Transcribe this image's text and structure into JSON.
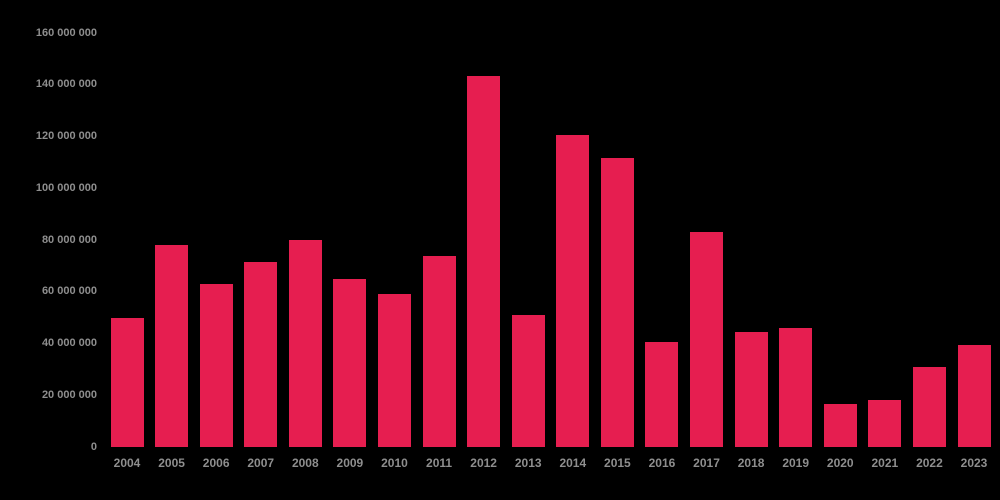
{
  "page": {
    "background_color": "#000000"
  },
  "chart_data": {
    "type": "bar",
    "title": "",
    "categories": [
      "2004",
      "2005",
      "2006",
      "2007",
      "2008",
      "2009",
      "2010",
      "2011",
      "2012",
      "2013",
      "2014",
      "2015",
      "2016",
      "2017",
      "2018",
      "2019",
      "2020",
      "2021",
      "2022",
      "2023"
    ],
    "values": [
      50000000,
      78000000,
      63000000,
      71500000,
      80000000,
      65000000,
      59000000,
      74000000,
      143500000,
      51000000,
      120500000,
      111500000,
      40500000,
      83000000,
      44500000,
      46000000,
      16500000,
      18000000,
      31000000,
      39500000
    ],
    "xlabel": "",
    "ylabel": "",
    "ylim": [
      0,
      160000000
    ],
    "ytick_step": 20000000,
    "ytick_labels": [
      "0",
      "20 000 000",
      "40 000 000",
      "60 000 000",
      "80 000 000",
      "100 000 000",
      "120 000 000",
      "140 000 000",
      "160 000 000"
    ],
    "grid": false,
    "legend": false,
    "colors": {
      "bar": "#e61e50",
      "axis_label": "#8e8e8e",
      "background": "#000000"
    }
  }
}
